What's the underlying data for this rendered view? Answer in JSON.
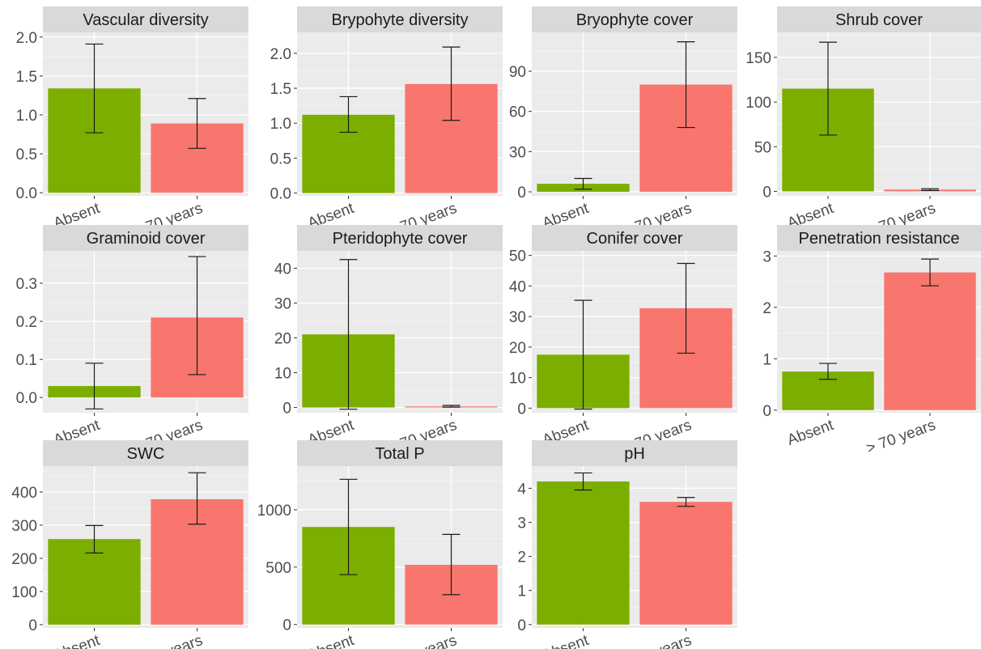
{
  "figure": {
    "categories": [
      "Absent",
      "> 70 years"
    ],
    "colors": {
      "Absent": "#7cae00",
      "> 70 years": "#f8766d",
      "panel_bg": "#ebebeb",
      "strip_bg": "#d9d9d9",
      "grid": "#ffffff"
    }
  },
  "chart_data": [
    {
      "type": "bar",
      "title": "Vascular diversity",
      "categories": [
        "Absent",
        "> 70 years"
      ],
      "values": [
        1.34,
        0.89
      ],
      "error_low": [
        0.77,
        0.57
      ],
      "error_high": [
        1.91,
        1.21
      ],
      "ylim": [
        -0.04,
        2.06
      ],
      "yticks": [
        0.0,
        0.5,
        1.0,
        1.5,
        2.0
      ],
      "ytick_labels": [
        "0.0",
        "0.5",
        "1.0",
        "1.5",
        "2.0"
      ]
    },
    {
      "type": "bar",
      "title": "Brypohyte diversity",
      "categories": [
        "Absent",
        "> 70 years"
      ],
      "values": [
        1.12,
        1.56
      ],
      "error_low": [
        0.87,
        1.04
      ],
      "error_high": [
        1.38,
        2.09
      ],
      "ylim": [
        -0.04,
        2.3
      ],
      "yticks": [
        0.0,
        0.5,
        1.0,
        1.5,
        2.0
      ],
      "ytick_labels": [
        "0.0",
        "0.5",
        "1.0",
        "1.5",
        "2.0"
      ]
    },
    {
      "type": "bar",
      "title": "Bryophyte cover",
      "categories": [
        "Absent",
        "> 70 years"
      ],
      "values": [
        6,
        80
      ],
      "error_low": [
        2,
        48
      ],
      "error_high": [
        10,
        112
      ],
      "ylim": [
        -3,
        119
      ],
      "yticks": [
        0,
        30,
        60,
        90
      ],
      "ytick_labels": [
        "0",
        "30",
        "60",
        "90"
      ]
    },
    {
      "type": "bar",
      "title": "Shrub cover",
      "categories": [
        "Absent",
        "> 70 years"
      ],
      "values": [
        115,
        2
      ],
      "error_low": [
        63,
        1
      ],
      "error_high": [
        167,
        3
      ],
      "ylim": [
        -5,
        178
      ],
      "yticks": [
        0,
        50,
        100,
        150
      ],
      "ytick_labels": [
        "0",
        "50",
        "100",
        "150"
      ]
    },
    {
      "type": "bar",
      "title": "Graminoid cover",
      "categories": [
        "Absent",
        "> 70 years"
      ],
      "values": [
        0.03,
        0.21
      ],
      "error_low": [
        -0.03,
        0.06
      ],
      "error_high": [
        0.09,
        0.37
      ],
      "ylim": [
        -0.04,
        0.385
      ],
      "yticks": [
        0.0,
        0.1,
        0.2,
        0.3
      ],
      "ytick_labels": [
        "0.0",
        "0.1",
        "0.2",
        "0.3"
      ]
    },
    {
      "type": "bar",
      "title": "Pteridophyte cover",
      "categories": [
        "Absent",
        "> 70 years"
      ],
      "values": [
        21,
        0.3
      ],
      "error_low": [
        -0.5,
        0.1
      ],
      "error_high": [
        42.5,
        0.6
      ],
      "ylim": [
        -1.5,
        45
      ],
      "yticks": [
        0,
        10,
        20,
        30,
        40
      ],
      "ytick_labels": [
        "0",
        "10",
        "20",
        "30",
        "40"
      ]
    },
    {
      "type": "bar",
      "title": "Conifer cover",
      "categories": [
        "Absent",
        "> 70 years"
      ],
      "values": [
        17.5,
        32.7
      ],
      "error_low": [
        -0.3,
        18
      ],
      "error_high": [
        35.3,
        47.4
      ],
      "ylim": [
        -1.5,
        51.5
      ],
      "yticks": [
        0,
        10,
        20,
        30,
        40,
        50
      ],
      "ytick_labels": [
        "0",
        "10",
        "20",
        "30",
        "40",
        "50"
      ]
    },
    {
      "type": "bar",
      "title": "Penetration resistance",
      "categories": [
        "Absent",
        "> 70 years"
      ],
      "values": [
        0.75,
        2.68
      ],
      "error_low": [
        0.6,
        2.42
      ],
      "error_high": [
        0.91,
        2.94
      ],
      "ylim": [
        -0.05,
        3.1
      ],
      "yticks": [
        0,
        1,
        2,
        3
      ],
      "ytick_labels": [
        "0",
        "1",
        "2",
        "3"
      ]
    },
    {
      "type": "bar",
      "title": "SWC",
      "categories": [
        "Absent",
        "> 70 years"
      ],
      "values": [
        258,
        378
      ],
      "error_low": [
        216,
        303
      ],
      "error_high": [
        299,
        458
      ],
      "ylim": [
        -10,
        478
      ],
      "yticks": [
        0,
        100,
        200,
        300,
        400
      ],
      "ytick_labels": [
        "0",
        "100",
        "200",
        "300",
        "400"
      ]
    },
    {
      "type": "bar",
      "title": "Total P",
      "categories": [
        "Absent",
        "> 70 years"
      ],
      "values": [
        850,
        520
      ],
      "error_low": [
        435,
        260
      ],
      "error_high": [
        1265,
        785
      ],
      "ylim": [
        -30,
        1380
      ],
      "yticks": [
        0,
        500,
        1000
      ],
      "ytick_labels": [
        "0",
        "500",
        "1000"
      ]
    },
    {
      "type": "bar",
      "title": "pH",
      "categories": [
        "Absent",
        "> 70 years"
      ],
      "values": [
        4.2,
        3.6
      ],
      "error_low": [
        3.95,
        3.47
      ],
      "error_high": [
        4.45,
        3.73
      ],
      "ylim": [
        -0.1,
        4.65
      ],
      "yticks": [
        0,
        1,
        2,
        3,
        4
      ],
      "ytick_labels": [
        "0",
        "1",
        "2",
        "3",
        "4"
      ]
    }
  ]
}
